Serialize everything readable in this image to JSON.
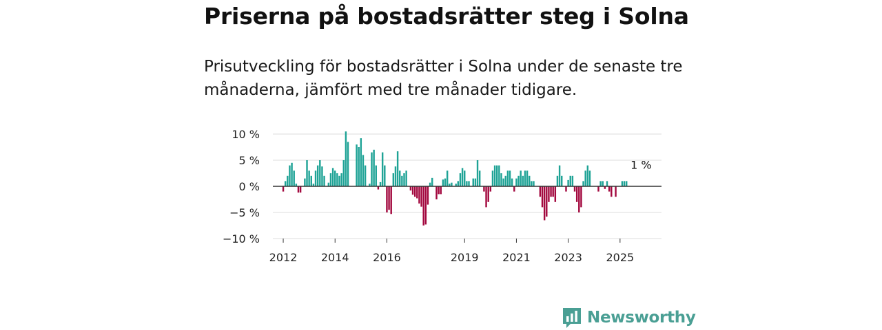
{
  "header": {
    "title": "Priserna på bostadsrätter steg i Solna",
    "subtitle": "Prisutveckling för bostadsrätter i Solna under de senaste tre månaderna, jämfört med tre månader tidigare."
  },
  "brand": {
    "name": "Newsworthy"
  },
  "colors": {
    "positive": "#1fa396",
    "negative": "#a3093f",
    "grid": "#dddddd",
    "zero": "#333333"
  },
  "chart_data": {
    "type": "bar",
    "title": "Priserna på bostadsrätter steg i Solna",
    "subtitle": "Prisutveckling för bostadsrätter i Solna under de senaste tre månaderna, jämfört med tre månader tidigare.",
    "xlabel": "",
    "ylabel": "",
    "ylim": [
      -10,
      10
    ],
    "yticks": [
      10,
      5,
      0,
      -5,
      -10
    ],
    "ytick_labels": [
      "10 %",
      "5 %",
      "0 %",
      "−5 %",
      "−10 %"
    ],
    "xlim": [
      2011.6,
      2026.6
    ],
    "xticks": [
      2012,
      2014,
      2016,
      2019,
      2021,
      2023,
      2025
    ],
    "xtick_labels": [
      "2012",
      "2014",
      "2016",
      "2019",
      "2021",
      "2023",
      "2025"
    ],
    "grid": true,
    "annotation": {
      "text": "1 %",
      "x": 2025.6,
      "y": 1
    },
    "start": 2012.0,
    "step": 0.08333,
    "values": [
      -1,
      1,
      2,
      4,
      4.5,
      3,
      0.5,
      -1.2,
      -1.2,
      0,
      1.5,
      5,
      3,
      2,
      0.5,
      3,
      4,
      5,
      3.8,
      2,
      0,
      0.7,
      2.5,
      3.5,
      3,
      2.5,
      2,
      2.5,
      5,
      10.5,
      8.5,
      0,
      0,
      0,
      8,
      7.5,
      9.2,
      6,
      4,
      0,
      0.5,
      6.5,
      7,
      4,
      -0.6,
      0.8,
      6.5,
      4,
      -5,
      -4.5,
      -5.3,
      2.5,
      3.8,
      6.7,
      3,
      2,
      2.5,
      3,
      0,
      -0.8,
      -1.6,
      -2,
      -2.3,
      -3.3,
      -3.9,
      -7.5,
      -7.3,
      -3.5,
      0.7,
      1.6,
      0,
      -2.5,
      -1.5,
      -1.5,
      1.3,
      1.5,
      3,
      0.5,
      0.7,
      0,
      0.5,
      1,
      2.5,
      3.5,
      3,
      1,
      1,
      0,
      1.5,
      1.5,
      5,
      3,
      0,
      -1,
      -4,
      -3,
      -1,
      3,
      4,
      4,
      4,
      2.5,
      1.5,
      2,
      3,
      3,
      1.5,
      -1,
      1.5,
      2,
      3,
      2,
      3,
      3,
      2,
      1,
      1,
      0,
      0,
      -2,
      -4,
      -6.5,
      -5.8,
      -3,
      -2,
      -2,
      -3,
      2,
      4,
      2,
      0,
      -1,
      1.2,
      2,
      2,
      -1,
      -3,
      -5,
      -4,
      1,
      3,
      4,
      3,
      0,
      0,
      0,
      -1,
      1,
      1,
      -0.5,
      1,
      -1,
      -2,
      0,
      -2,
      0,
      0,
      1,
      1,
      1
    ]
  }
}
